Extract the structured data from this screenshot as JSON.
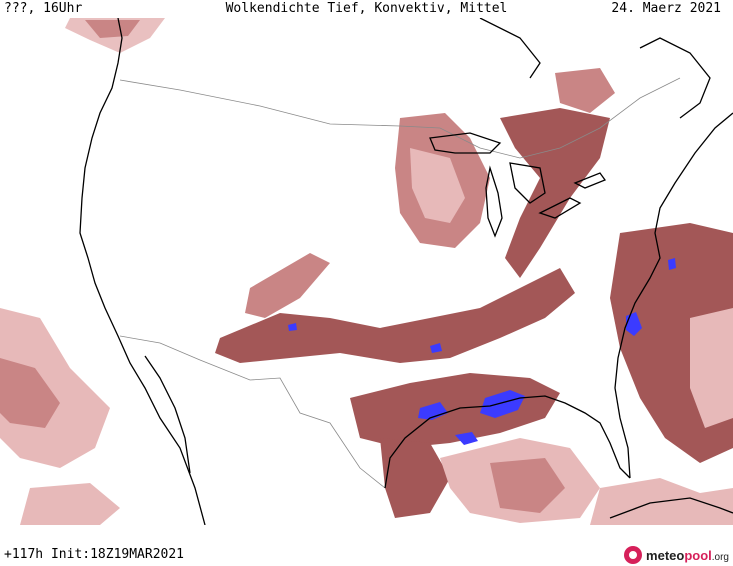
{
  "header": {
    "left": "???, 16Uhr",
    "center": "Wolkendichte   Tief, Konvektiv, Mittel",
    "right": "24. Maerz 2021"
  },
  "footer": {
    "left": "+117h  Init:18Z19MAR2021"
  },
  "logo": {
    "part1": "meteo",
    "part2": "pool",
    "part3": ".org"
  },
  "colors": {
    "cloud_light": "#e7b9b9",
    "cloud_mid": "#c98585",
    "cloud_dense": "#a35757",
    "cloud_core": "#8a4444",
    "convective": "#3b3bff",
    "coast": "#000000",
    "border": "#8a8a8a"
  }
}
